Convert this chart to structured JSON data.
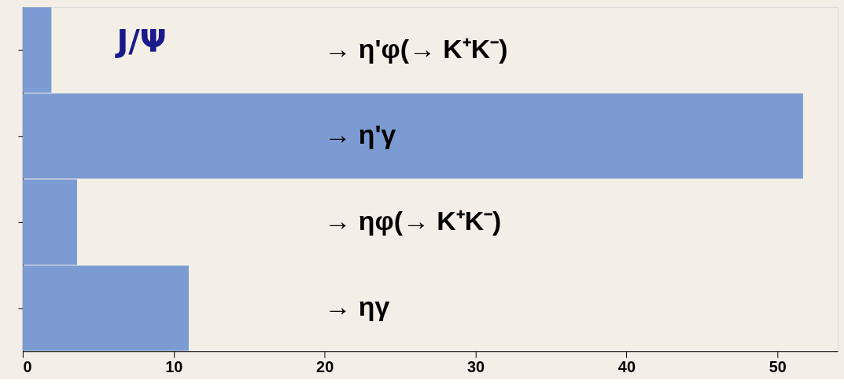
{
  "chart_data": {
    "type": "bar",
    "orientation": "horizontal",
    "title": "J/Ψ",
    "categories": [
      "→ η'φ(→ K⁺K⁻)",
      "→ η'γ",
      "→ ηφ(→ K⁺K⁻)",
      "→ ηγ"
    ],
    "values": [
      1.9,
      51.7,
      3.6,
      11.0
    ],
    "color": "#7b9bd2",
    "xlim": [
      0,
      54
    ],
    "xticks": [
      0,
      10,
      20,
      30,
      40,
      50
    ],
    "tick_labels": "x",
    "grid": false
  }
}
